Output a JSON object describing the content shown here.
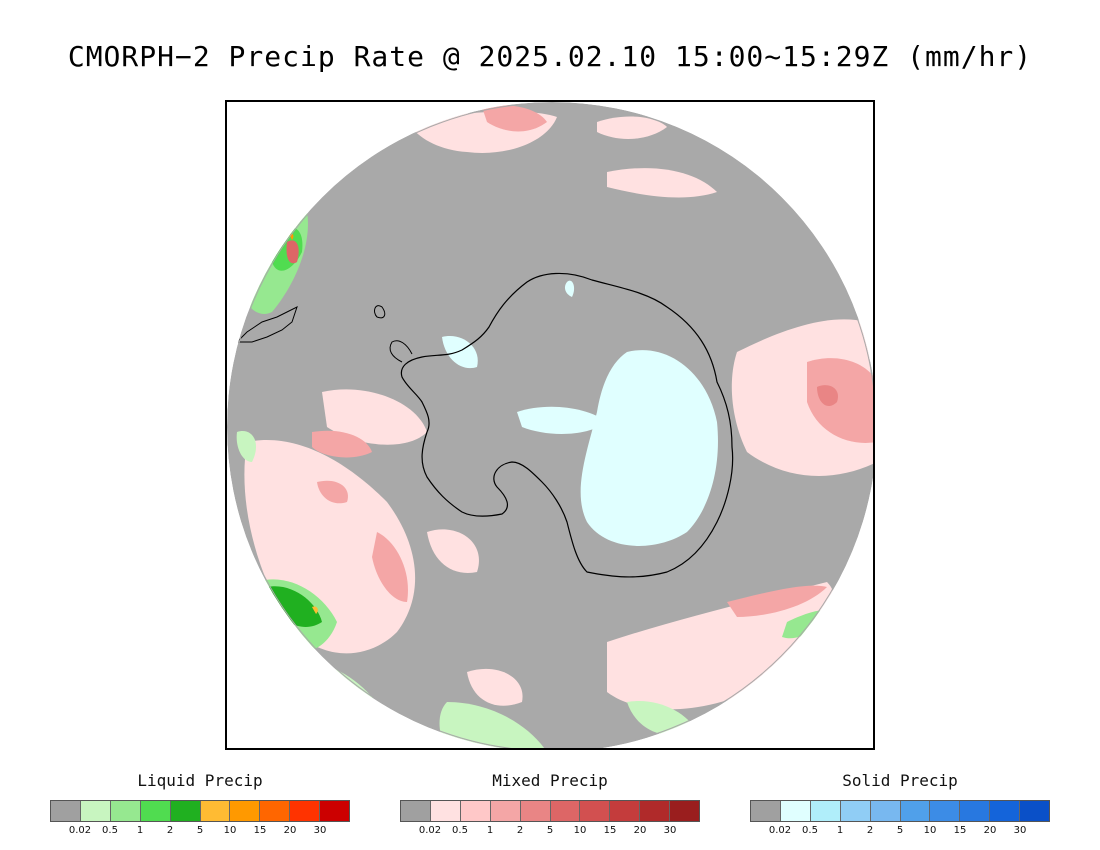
{
  "title": "CMORPH−2 Precip Rate @ 2025.02.10 15:00~15:29Z (mm/hr)",
  "map": {
    "projection": "south-polar-stereographic",
    "background_no_precip_color": "#a9a9a9",
    "coastline_color": "#000000"
  },
  "legends": [
    {
      "title": "Liquid Precip",
      "colors": [
        "#a0a0a0",
        "#c8f5c0",
        "#96e890",
        "#50dc50",
        "#20b020",
        "#ffbb33",
        "#ff9900",
        "#ff6600",
        "#ff3300",
        "#cc0000"
      ],
      "labels": [
        "0.02",
        "0.5",
        "1",
        "2",
        "5",
        "10",
        "15",
        "20",
        "30"
      ]
    },
    {
      "title": "Mixed Precip",
      "colors": [
        "#a0a0a0",
        "#ffe1e1",
        "#ffc8c8",
        "#f4a6a6",
        "#e98585",
        "#dd6666",
        "#d25050",
        "#c43c3c",
        "#b02a2a",
        "#9a1e1e"
      ],
      "labels": [
        "0.02",
        "0.5",
        "1",
        "2",
        "5",
        "10",
        "15",
        "20",
        "30"
      ]
    },
    {
      "title": "Solid Precip",
      "colors": [
        "#a0a0a0",
        "#e0ffff",
        "#b0eefa",
        "#90cdf5",
        "#78b8f0",
        "#50a0ea",
        "#3c8ce6",
        "#2878e0",
        "#1464da",
        "#0a50c8"
      ],
      "labels": [
        "0.02",
        "0.5",
        "1",
        "2",
        "5",
        "10",
        "15",
        "20",
        "30"
      ]
    }
  ]
}
